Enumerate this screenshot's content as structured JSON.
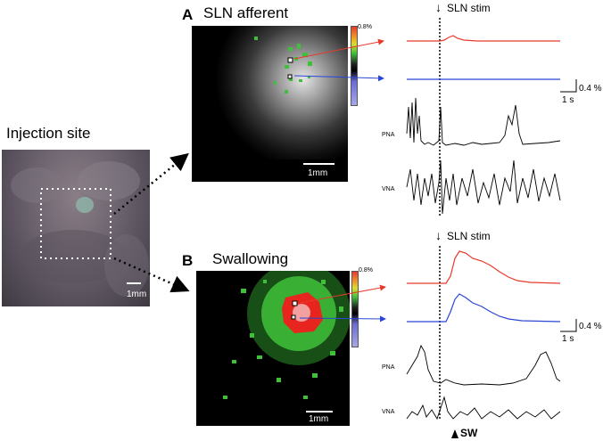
{
  "injection": {
    "title": "Injection site",
    "scale_label": "1mm"
  },
  "panel_a": {
    "letter": "A",
    "title": "SLN afferent",
    "scale_label": "1mm",
    "colorbar_max": "0.8%",
    "stim_label": "SLN stim",
    "scale_bar_value": "0.4 %",
    "scale_bar_time": "1 s",
    "trace_labels": [
      "PNA",
      "VNA"
    ]
  },
  "panel_b": {
    "letter": "B",
    "title": "Swallowing",
    "scale_label": "1mm",
    "colorbar_max": "0.8%",
    "stim_label": "SLN stim",
    "scale_bar_value": "0.4 %",
    "scale_bar_time": "1 s",
    "trace_labels": [
      "PNA",
      "VNA"
    ],
    "sw_label": "SW"
  },
  "colors": {
    "red_trace": "#e8392b",
    "blue_trace": "#2b46d6",
    "green_signal": "#3fbf3a",
    "red_signal": "#e8241f"
  }
}
